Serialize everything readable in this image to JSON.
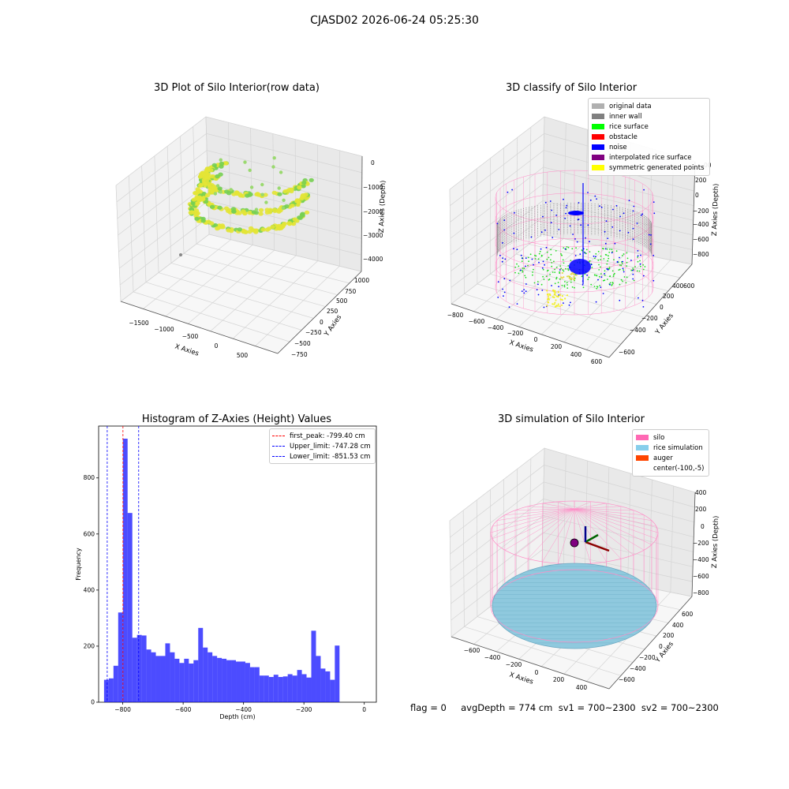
{
  "suptitle": "CJASD02 2026-06-24 05:25:30",
  "footer_text": "flag = 0     avgDepth = 774 cm  sv1 = 700~2300  sv2 = 700~2300",
  "chart_data": [
    {
      "type": "scatter",
      "title": "3D Plot of Silo Interior(row data)",
      "xlabel": "X Axies",
      "ylabel": "Y Axies",
      "zlabel": "Z Axies (Depth)",
      "x_ticks": [
        "−1500",
        "−1000",
        "−500",
        "0",
        "500"
      ],
      "y_ticks": [
        "−750",
        "−500",
        "−250",
        "0",
        "250",
        "500",
        "750",
        "1000"
      ],
      "z_ticks": [
        "0",
        "−1000",
        "−2000",
        "−3000",
        "−4000"
      ],
      "colormap": [
        "#5ec962",
        "#fde725"
      ]
    },
    {
      "type": "scatter",
      "title": "3D classify of Silo Interior",
      "xlabel": "X Axies",
      "ylabel": "Y Axies",
      "zlabel": "Z Axies (Depth)",
      "x_ticks": [
        "−800",
        "−600",
        "−400",
        "−200",
        "0",
        "200",
        "400",
        "600"
      ],
      "y_ticks": [
        "−600",
        "−400",
        "−200",
        "0",
        "200",
        "400",
        "600"
      ],
      "z_ticks": [
        "200",
        "0",
        "−200",
        "−400",
        "−600",
        "−800"
      ],
      "z_top_partial": "00",
      "legend": [
        {
          "label": "original data",
          "color": "#b0b0b0"
        },
        {
          "label": "inner wall",
          "color": "#808080"
        },
        {
          "label": "rice surface",
          "color": "#00ff00"
        },
        {
          "label": "obstacle",
          "color": "#ff0000"
        },
        {
          "label": "noise",
          "color": "#0000ff"
        },
        {
          "label": "interpolated rice surface",
          "color": "#800080"
        },
        {
          "label": "symmetric generated points",
          "color": "#ffff00"
        }
      ]
    },
    {
      "type": "bar",
      "title": "Histogram of Z-Axies (Height) Values",
      "xlabel": "Depth (cm)",
      "ylabel": "Frequency",
      "xlim": [
        -880,
        40
      ],
      "ylim": [
        0,
        985
      ],
      "x_ticks": [
        -800,
        -600,
        -400,
        -200,
        0
      ],
      "y_ticks": [
        0,
        200,
        400,
        600,
        800
      ],
      "bar_color": "#0000ff",
      "bin_width": 15.6,
      "bin_start": -862,
      "values": [
        80,
        85,
        130,
        320,
        940,
        675,
        230,
        240,
        238,
        188,
        178,
        165,
        165,
        210,
        178,
        155,
        140,
        155,
        138,
        150,
        265,
        195,
        178,
        165,
        158,
        155,
        150,
        150,
        145,
        145,
        140,
        125,
        125,
        95,
        95,
        90,
        98,
        90,
        92,
        100,
        95,
        115,
        100,
        88,
        255,
        165,
        120,
        110,
        80,
        202
      ],
      "vlines": [
        {
          "label": "first_peak: -799.40 cm",
          "x": -799.4,
          "color": "#ff0000"
        },
        {
          "label": "Upper_limit: -747.28 cm",
          "x": -747.28,
          "color": "#0000ff"
        },
        {
          "label": "Lower_limit: -851.53 cm",
          "x": -851.53,
          "color": "#0000ff"
        }
      ]
    },
    {
      "type": "scatter",
      "title": "3D simulation of Silo Interior",
      "xlabel": "X Axies",
      "ylabel": "Y Axies",
      "zlabel": "Z Axies (Depth)",
      "x_ticks": [
        "−600",
        "−400",
        "−200",
        "0",
        "200",
        "400"
      ],
      "y_ticks": [
        "−600",
        "−400",
        "−200",
        "0",
        "200",
        "400",
        "600"
      ],
      "z_ticks": [
        "400",
        "200",
        "0",
        "−200",
        "−400",
        "−600",
        "−800"
      ],
      "legend": [
        {
          "label": "silo",
          "color": "#ff69b4"
        },
        {
          "label": "rice simulation",
          "color": "#87ceeb"
        },
        {
          "label": "auger",
          "color": "#ff4500"
        },
        {
          "label": "center(-100,-5)",
          "color": ""
        }
      ]
    }
  ]
}
